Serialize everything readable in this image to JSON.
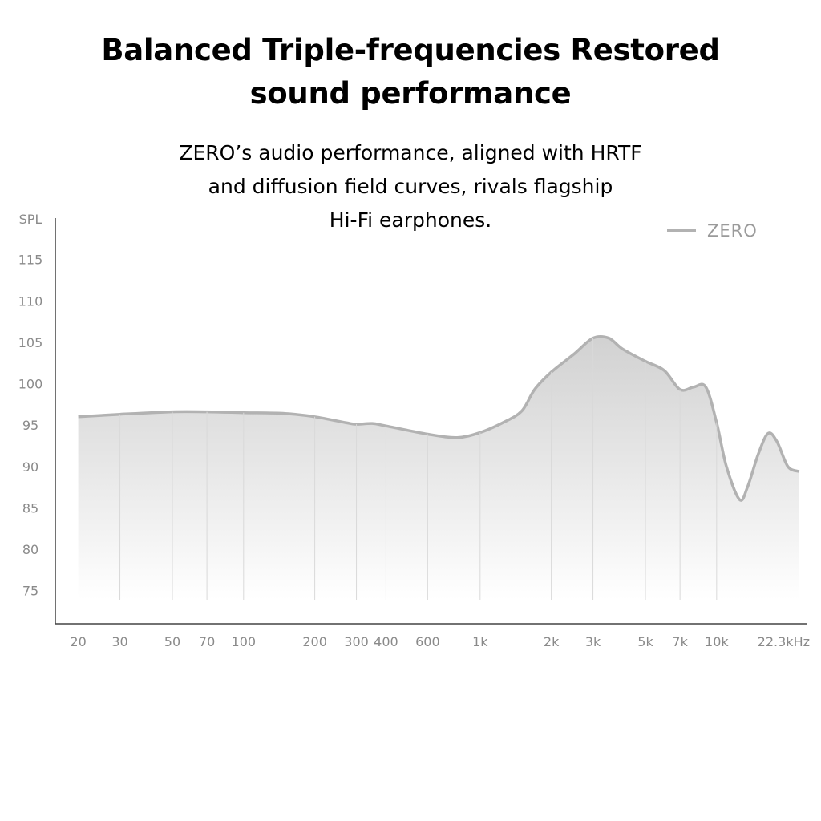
{
  "headline": {
    "line1": "Balanced Triple-frequencies Restored",
    "line2": "sound performance"
  },
  "description": {
    "line1": "ZERO’s audio performance, aligned with HRTF",
    "line2": "and diffusion field curves, rivals flagship",
    "line3": "Hi-Fi earphones."
  },
  "chart_data": {
    "type": "area",
    "title": "",
    "xlabel": "",
    "ylabel": "SPL",
    "x_scale": "log",
    "xlim": [
      16,
      24000
    ],
    "ylim": [
      71,
      120
    ],
    "grid": "vertical",
    "legend_position": "top-right",
    "line_color": "#b2b2b2",
    "x_ticks": [
      {
        "value": 20,
        "label": "20"
      },
      {
        "value": 30,
        "label": "30"
      },
      {
        "value": 50,
        "label": "50"
      },
      {
        "value": 70,
        "label": "70"
      },
      {
        "value": 100,
        "label": "100"
      },
      {
        "value": 200,
        "label": "200"
      },
      {
        "value": 300,
        "label": "300"
      },
      {
        "value": 400,
        "label": "400"
      },
      {
        "value": 600,
        "label": "600"
      },
      {
        "value": 1000,
        "label": "1k"
      },
      {
        "value": 2000,
        "label": "2k"
      },
      {
        "value": 3000,
        "label": "3k"
      },
      {
        "value": 5000,
        "label": "5k"
      },
      {
        "value": 7000,
        "label": "7k"
      },
      {
        "value": 10000,
        "label": "10k"
      },
      {
        "value": 22300,
        "label": "22.3kHz"
      }
    ],
    "y_ticks": [
      75,
      80,
      85,
      90,
      95,
      100,
      105,
      110,
      115
    ],
    "series": [
      {
        "name": "ZERO",
        "points": [
          [
            20,
            96.0
          ],
          [
            30,
            96.3
          ],
          [
            50,
            96.6
          ],
          [
            70,
            96.6
          ],
          [
            100,
            96.5
          ],
          [
            150,
            96.4
          ],
          [
            200,
            96.0
          ],
          [
            270,
            95.3
          ],
          [
            300,
            95.1
          ],
          [
            350,
            95.2
          ],
          [
            400,
            94.9
          ],
          [
            600,
            93.9
          ],
          [
            800,
            93.5
          ],
          [
            1000,
            94.1
          ],
          [
            1250,
            95.3
          ],
          [
            1500,
            96.7
          ],
          [
            1700,
            99.3
          ],
          [
            2000,
            101.4
          ],
          [
            2500,
            103.6
          ],
          [
            3000,
            105.5
          ],
          [
            3500,
            105.5
          ],
          [
            4000,
            104.2
          ],
          [
            5000,
            102.7
          ],
          [
            6000,
            101.6
          ],
          [
            7000,
            99.3
          ],
          [
            8000,
            99.6
          ],
          [
            9000,
            99.6
          ],
          [
            10000,
            95.3
          ],
          [
            11000,
            90.0
          ],
          [
            12500,
            86.0
          ],
          [
            13500,
            87.5
          ],
          [
            15000,
            91.5
          ],
          [
            16500,
            94.0
          ],
          [
            18000,
            93.0
          ],
          [
            20000,
            90.0
          ],
          [
            22300,
            89.4
          ]
        ]
      }
    ]
  }
}
